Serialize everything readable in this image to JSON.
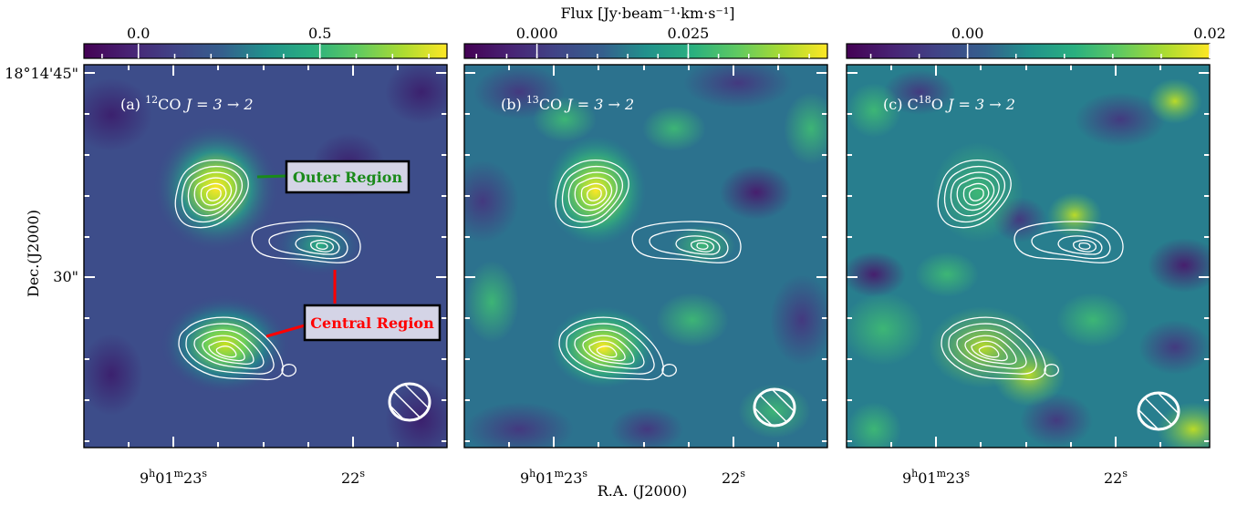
{
  "chart_data": {
    "type": "heatmap",
    "colorbar_label": "Flux [Jy·beam⁻¹·km·s⁻¹]",
    "xlabel": "R.A. (J2000)",
    "ylabel": "Dec.(J2000)",
    "y_ticks": [
      {
        "value": "18°14'45\"",
        "label": "18°14'45\""
      },
      {
        "value": "30\"",
        "label": "30\""
      }
    ],
    "x_ticks": [
      {
        "value": "9h01m23s",
        "label_main": "9",
        "sup1": "h",
        "mid": "01",
        "sup2": "m",
        "tail": "23",
        "sup3": "s"
      },
      {
        "value": "22s",
        "label_main": "22",
        "sup3": "s"
      }
    ],
    "colormap": "viridis",
    "panels": [
      {
        "label": "(a) ¹²CO J=3→2",
        "label_prefix": "(a) ",
        "label_sup": "12",
        "label_species": "CO ",
        "label_trans": "J = 3 → 2",
        "colorbar_ticks": [
          {
            "value": 0.0,
            "label": "0.0"
          },
          {
            "value": 0.5,
            "label": "0.5"
          }
        ],
        "colorbar_range": [
          -0.15,
          0.85
        ],
        "sources": [
          {
            "name": "outer",
            "intensity": 0.75
          },
          {
            "name": "central",
            "intensity": 0.65
          },
          {
            "name": "east",
            "intensity": 0.3
          }
        ],
        "annotations": [
          "Outer Region",
          "Central Region"
        ]
      },
      {
        "label": "(b) ¹³CO J=3→2",
        "label_prefix": "(b) ",
        "label_sup": "13",
        "label_species": "CO ",
        "label_trans": "J = 3 → 2",
        "colorbar_ticks": [
          {
            "value": 0.0,
            "label": "0.000"
          },
          {
            "value": 0.025,
            "label": "0.025"
          }
        ],
        "colorbar_range": [
          -0.012,
          0.048
        ]
      },
      {
        "label": "(c) C¹⁸O J=3→2",
        "label_prefix": "(c) C",
        "label_sup": "18",
        "label_species": "O ",
        "label_trans": "J = 3 → 2",
        "colorbar_ticks": [
          {
            "value": 0.0,
            "label": "0.00"
          },
          {
            "value": 0.02,
            "label": "0.02"
          }
        ],
        "colorbar_range": [
          -0.01,
          0.02
        ]
      }
    ],
    "contours": "white, 6 levels around two main cores and one secondary core",
    "beam": "hatched ellipse, lower-right",
    "legend": "none",
    "colors": {
      "outer_region": "#1a8a1a",
      "central_region": "#ff0000",
      "annotation_box": "#d4d4e6"
    }
  }
}
